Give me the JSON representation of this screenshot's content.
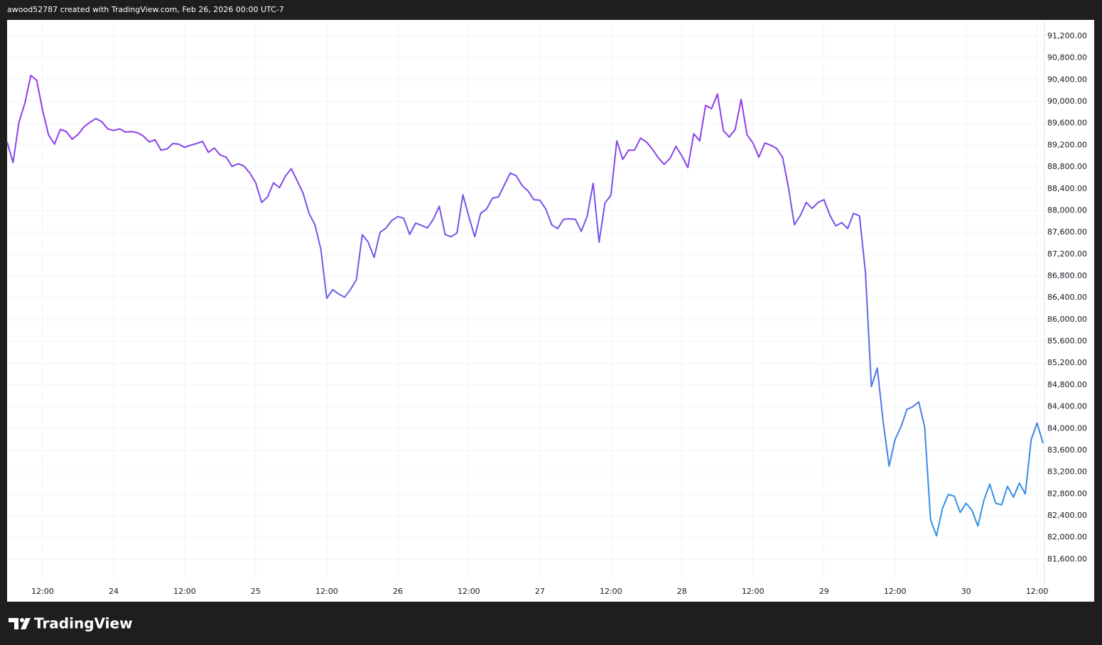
{
  "header": {
    "text": "awood52787 created with TradingView.com, Feb 26, 2026 00:00 UTC-7"
  },
  "footer": {
    "brand": "TradingView"
  },
  "chart_data": {
    "type": "line",
    "gradient": {
      "top_color": "#a826ec",
      "bottom_color": "#1ea2e2"
    },
    "grid": true,
    "ylim": [
      81240,
      91500
    ],
    "yticks": [
      {
        "value": 81600,
        "label": "81,600.00"
      },
      {
        "value": 82000,
        "label": "82,000.00"
      },
      {
        "value": 82400,
        "label": "82,400.00"
      },
      {
        "value": 82800,
        "label": "82,800.00"
      },
      {
        "value": 83200,
        "label": "83,200.00"
      },
      {
        "value": 83600,
        "label": "83,600.00"
      },
      {
        "value": 84000,
        "label": "84,000.00"
      },
      {
        "value": 84400,
        "label": "84,400.00"
      },
      {
        "value": 84800,
        "label": "84,800.00"
      },
      {
        "value": 85200,
        "label": "85,200.00"
      },
      {
        "value": 85600,
        "label": "85,600.00"
      },
      {
        "value": 86000,
        "label": "86,000.00"
      },
      {
        "value": 86400,
        "label": "86,400.00"
      },
      {
        "value": 86800,
        "label": "86,800.00"
      },
      {
        "value": 87200,
        "label": "87,200.00"
      },
      {
        "value": 87600,
        "label": "87,600.00"
      },
      {
        "value": 88000,
        "label": "88,000.00"
      },
      {
        "value": 88400,
        "label": "88,400.00"
      },
      {
        "value": 88800,
        "label": "88,800.00"
      },
      {
        "value": 89200,
        "label": "89,200.00"
      },
      {
        "value": 89600,
        "label": "89,600.00"
      },
      {
        "value": 90000,
        "label": "90,000.00"
      },
      {
        "value": 90400,
        "label": "90,400.00"
      },
      {
        "value": 90800,
        "label": "90,800.00"
      },
      {
        "value": 91200,
        "label": "91,200.00"
      }
    ],
    "categories": [
      null,
      null,
      null,
      null,
      null,
      null,
      "12:00",
      null,
      null,
      null,
      null,
      null,
      null,
      null,
      null,
      null,
      null,
      null,
      "24",
      null,
      null,
      null,
      null,
      null,
      null,
      null,
      null,
      null,
      null,
      null,
      "12:00",
      null,
      null,
      null,
      null,
      null,
      null,
      null,
      null,
      null,
      null,
      null,
      "25",
      null,
      null,
      null,
      null,
      null,
      null,
      null,
      null,
      null,
      null,
      null,
      "12:00",
      null,
      null,
      null,
      null,
      null,
      null,
      null,
      null,
      null,
      null,
      null,
      "26",
      null,
      null,
      null,
      null,
      null,
      null,
      null,
      null,
      null,
      null,
      null,
      "12:00",
      null,
      null,
      null,
      null,
      null,
      null,
      null,
      null,
      null,
      null,
      null,
      "27",
      null,
      null,
      null,
      null,
      null,
      null,
      null,
      null,
      null,
      null,
      null,
      "12:00",
      null,
      null,
      null,
      null,
      null,
      null,
      null,
      null,
      null,
      null,
      null,
      "28",
      null,
      null,
      null,
      null,
      null,
      null,
      null,
      null,
      null,
      null,
      null,
      "12:00",
      null,
      null,
      null,
      null,
      null,
      null,
      null,
      null,
      null,
      null,
      null,
      "29",
      null,
      null,
      null,
      null,
      null,
      null,
      null,
      null,
      null,
      null,
      null,
      "12:00",
      null,
      null,
      null,
      null,
      null,
      null,
      null,
      null,
      null,
      null,
      null,
      "30",
      null,
      null,
      null,
      null,
      null,
      null,
      null,
      null,
      null,
      null,
      null,
      "12:00",
      null
    ],
    "values": [
      89260,
      88880,
      89620,
      89970,
      90480,
      90390,
      89840,
      89390,
      89220,
      89490,
      89450,
      89310,
      89400,
      89540,
      89620,
      89690,
      89630,
      89500,
      89470,
      89500,
      89440,
      89450,
      89430,
      89370,
      89260,
      89300,
      89110,
      89130,
      89230,
      89220,
      89160,
      89200,
      89230,
      89270,
      89070,
      89150,
      89020,
      88980,
      88810,
      88860,
      88820,
      88690,
      88510,
      88150,
      88250,
      88510,
      88420,
      88630,
      88770,
      88550,
      88320,
      87950,
      87740,
      87290,
      86390,
      86550,
      86470,
      86410,
      86550,
      86730,
      87560,
      87420,
      87140,
      87600,
      87680,
      87820,
      87890,
      87860,
      87560,
      87770,
      87730,
      87680,
      87840,
      88080,
      87560,
      87520,
      87590,
      88290,
      87890,
      87520,
      87950,
      88030,
      88230,
      88250,
      88470,
      88690,
      88640,
      88460,
      88360,
      88200,
      88190,
      88030,
      87740,
      87670,
      87840,
      87850,
      87840,
      87620,
      87900,
      88500,
      87420,
      88140,
      88280,
      89280,
      88940,
      89110,
      89110,
      89330,
      89260,
      89130,
      88970,
      88850,
      88960,
      89180,
      89000,
      88790,
      89410,
      89280,
      89930,
      89870,
      90140,
      89470,
      89350,
      89490,
      90040,
      89390,
      89240,
      88980,
      89240,
      89200,
      89140,
      88980,
      88420,
      87740,
      87910,
      88150,
      88040,
      88150,
      88200,
      87910,
      87720,
      87780,
      87670,
      87950,
      87900,
      86870,
      84770,
      85110,
      84120,
      83310,
      83800,
      84030,
      84350,
      84400,
      84490,
      84030,
      82330,
      82030,
      82530,
      82790,
      82760,
      82460,
      82630,
      82500,
      82210,
      82680,
      82980,
      82630,
      82600,
      82940,
      82740,
      83000,
      82800,
      83800,
      84100,
      83730
    ]
  }
}
